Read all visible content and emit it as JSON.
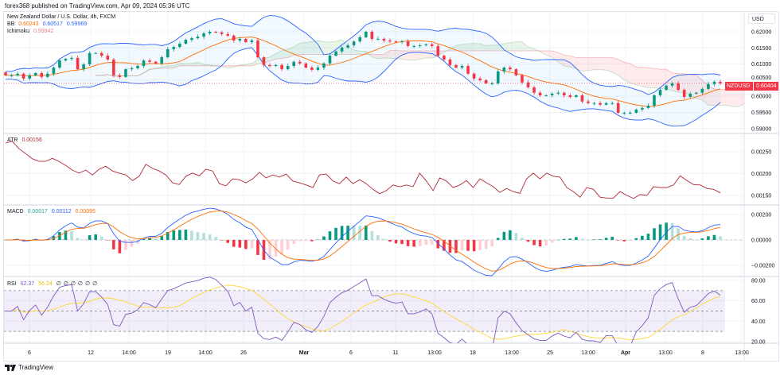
{
  "header": {
    "published": "forex368 published on TradingView.com, Apr 09, 2024 05:36 UTC"
  },
  "legend": {
    "symbol": "New Zealand Dollar / U.S. Dollar, 4h, FXCM",
    "bb": {
      "label": "BB",
      "basis": "0.60243",
      "upper": "0.60517",
      "lower": "0.59969"
    },
    "ichimoku": {
      "label": "Ichimoku",
      "value": "0.59942"
    },
    "atr": {
      "label": "ATR",
      "value": "0.00156"
    },
    "macd": {
      "label": "MACD",
      "hist": "0.00017",
      "macd": "0.00112",
      "signal": "0.00095"
    },
    "rsi": {
      "label": "RSI",
      "rsi": "62.37",
      "ma": "56.24",
      "na": [
        "∅",
        "∅",
        "∅",
        "∅",
        "∅",
        "∅"
      ]
    }
  },
  "currency_button": "USD",
  "price_tag": {
    "symbol": "NZDUSD",
    "price": "0.60404"
  },
  "footer": {
    "brand": "TradingView",
    "logo_icon": "tradingview-logo-icon"
  },
  "colors": {
    "up": "#089981",
    "down": "#f23645",
    "bb_band": "#2962ff",
    "bb_basis": "#ff6d00",
    "atr": "#b22833",
    "macd": "#2962ff",
    "signal": "#ff6d00",
    "rsi": "#7e57c2",
    "rsi_ma": "#fdd835"
  },
  "chart_data": {
    "type": "candlestick",
    "x_ticks": [
      "6",
      "12",
      "14:00",
      "19",
      "14:00",
      "26",
      "Mar",
      "6",
      "11",
      "13:00",
      "18",
      "13:00",
      "25",
      "13:00",
      "Apr",
      "13:00",
      "8",
      "13:00"
    ],
    "main": {
      "y_ticks": [
        "0.62000",
        "0.61500",
        "0.61000",
        "0.60500",
        "0.60000",
        "0.59500",
        "0.59000"
      ],
      "ylim": [
        0.59,
        0.62
      ],
      "close": [
        0.6065,
        0.6065,
        0.607,
        0.6055,
        0.6065,
        0.6072,
        0.606,
        0.607,
        0.6089,
        0.6111,
        0.6116,
        0.6119,
        0.6084,
        0.6099,
        0.6134,
        0.6134,
        0.6126,
        0.6114,
        0.6065,
        0.606,
        0.6084,
        0.6087,
        0.6094,
        0.6111,
        0.6107,
        0.6102,
        0.6121,
        0.6146,
        0.6153,
        0.6163,
        0.6175,
        0.618,
        0.6185,
        0.6195,
        0.62,
        0.6198,
        0.6193,
        0.6188,
        0.6173,
        0.6178,
        0.6168,
        0.6173,
        0.6121,
        0.6097,
        0.6094,
        0.6097,
        0.6084,
        0.6094,
        0.6107,
        0.6102,
        0.6089,
        0.6082,
        0.6089,
        0.6102,
        0.6126,
        0.6139,
        0.6151,
        0.6158,
        0.617,
        0.6183,
        0.62,
        0.6178,
        0.6178,
        0.6173,
        0.617,
        0.6168,
        0.617,
        0.6156,
        0.6156,
        0.6158,
        0.6161,
        0.6156,
        0.6126,
        0.6114,
        0.6097,
        0.6089,
        0.6094,
        0.607,
        0.6055,
        0.605,
        0.604,
        0.604,
        0.6077,
        0.6089,
        0.6084,
        0.6065,
        0.6043,
        0.6028,
        0.6011,
        0.6003,
        0.6003,
        0.6008,
        0.6011,
        0.6003,
        0.5998,
        0.6003,
        0.5984,
        0.5979,
        0.5979,
        0.5974,
        0.5979,
        0.5979,
        0.5949,
        0.5949,
        0.5949,
        0.5959,
        0.5964,
        0.5971,
        0.6003,
        0.602,
        0.6033,
        0.604,
        0.602,
        0.5998,
        0.6008,
        0.6011,
        0.6023,
        0.6038,
        0.6045,
        0.604
      ]
    },
    "atr": {
      "y_ticks": [
        "0.00250",
        "0.00200",
        "0.00150"
      ],
      "values": [
        0.0027,
        0.00274,
        0.00257,
        0.00246,
        0.00234,
        0.00228,
        0.00228,
        0.00235,
        0.00228,
        0.00219,
        0.00208,
        0.00201,
        0.00208,
        0.00197,
        0.0021,
        0.00217,
        0.00206,
        0.00201,
        0.00197,
        0.00184,
        0.00194,
        0.00221,
        0.00212,
        0.00206,
        0.00197,
        0.00179,
        0.00175,
        0.00194,
        0.00201,
        0.00195,
        0.0021,
        0.00206,
        0.00177,
        0.00172,
        0.00188,
        0.00186,
        0.00179,
        0.00188,
        0.00203,
        0.0019,
        0.00197,
        0.00192,
        0.00199,
        0.00183,
        0.00179,
        0.00174,
        0.00168,
        0.00197,
        0.00199,
        0.00183,
        0.00177,
        0.00192,
        0.00177,
        0.00186,
        0.00177,
        0.00164,
        0.00154,
        0.00161,
        0.00174,
        0.0017,
        0.00174,
        0.0017,
        0.00201,
        0.00183,
        0.00161,
        0.0019,
        0.00183,
        0.00168,
        0.00174,
        0.00184,
        0.00168,
        0.00188,
        0.00179,
        0.0017,
        0.00157,
        0.00166,
        0.00159,
        0.00155,
        0.00188,
        0.00201,
        0.00188,
        0.00201,
        0.00194,
        0.00192,
        0.00168,
        0.00159,
        0.00146,
        0.00168,
        0.00164,
        0.00146,
        0.00144,
        0.00144,
        0.00159,
        0.0015,
        0.00143,
        0.00152,
        0.0015,
        0.0017,
        0.00168,
        0.00168,
        0.00174,
        0.00195,
        0.00184,
        0.00175,
        0.00174,
        0.00166,
        0.00164,
        0.00156
      ]
    },
    "macd": {
      "y_ticks": [
        "0.00200",
        "0.00000",
        "−0.00200"
      ]
    },
    "rsi": {
      "y_ticks": [
        "80.00",
        "60.00",
        "40.00",
        "20.00"
      ],
      "bands": [
        70,
        50,
        30
      ]
    }
  }
}
